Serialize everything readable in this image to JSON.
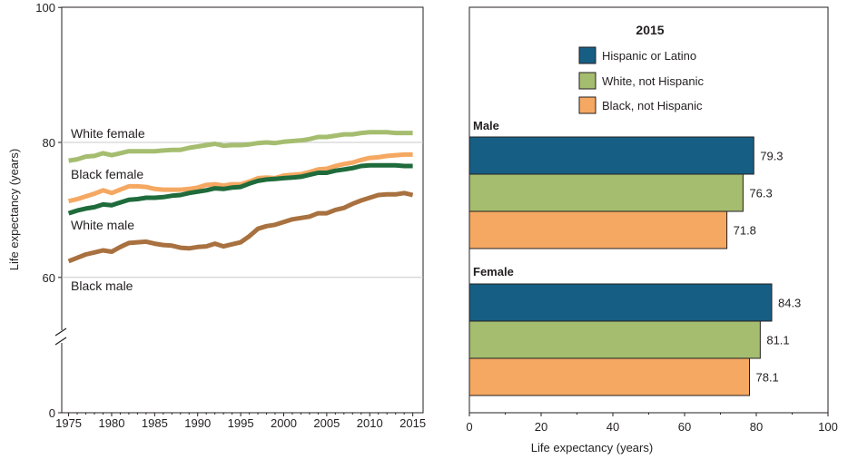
{
  "chart_data": [
    {
      "type": "line",
      "ylabel": "Life expectancy (years)",
      "ylim": [
        0,
        100
      ],
      "axis_break": true,
      "x_ticks": [
        "1975",
        "1980",
        "1985",
        "1990",
        "1995",
        "2000",
        "2005",
        "2010",
        "2015"
      ],
      "y_ticks": [
        "0",
        "60",
        "80",
        "100"
      ],
      "grid": "horizontal at 60 and 80",
      "x": [
        1975,
        1976,
        1977,
        1978,
        1979,
        1980,
        1981,
        1982,
        1983,
        1984,
        1985,
        1986,
        1987,
        1988,
        1989,
        1990,
        1991,
        1992,
        1993,
        1994,
        1995,
        1996,
        1997,
        1998,
        1999,
        2000,
        2001,
        2002,
        2003,
        2004,
        2005,
        2006,
        2007,
        2008,
        2009,
        2010,
        2011,
        2012,
        2013,
        2014,
        2015
      ],
      "series": [
        {
          "name": "White female",
          "color": "#a5bd6f",
          "values": [
            77.3,
            77.5,
            77.9,
            78.0,
            78.4,
            78.1,
            78.4,
            78.7,
            78.7,
            78.7,
            78.7,
            78.8,
            78.9,
            78.9,
            79.2,
            79.4,
            79.6,
            79.8,
            79.5,
            79.6,
            79.6,
            79.7,
            79.9,
            80.0,
            79.9,
            80.1,
            80.2,
            80.3,
            80.5,
            80.8,
            80.8,
            81.0,
            81.2,
            81.2,
            81.4,
            81.5,
            81.5,
            81.5,
            81.4,
            81.4,
            81.4
          ]
        },
        {
          "name": "Black female",
          "color": "#f5a862",
          "values": [
            71.3,
            71.6,
            72.0,
            72.4,
            72.9,
            72.5,
            73.0,
            73.5,
            73.5,
            73.4,
            73.1,
            73.0,
            73.0,
            73.0,
            73.1,
            73.3,
            73.7,
            73.8,
            73.6,
            73.8,
            73.8,
            74.2,
            74.7,
            74.8,
            74.7,
            75.1,
            75.2,
            75.3,
            75.6,
            76.0,
            76.1,
            76.5,
            76.8,
            77.0,
            77.4,
            77.7,
            77.8,
            78.0,
            78.1,
            78.2,
            78.2
          ]
        },
        {
          "name": "White male",
          "color": "#1f6b3b",
          "values": [
            69.5,
            69.9,
            70.2,
            70.4,
            70.8,
            70.7,
            71.1,
            71.5,
            71.6,
            71.8,
            71.8,
            71.9,
            72.1,
            72.2,
            72.5,
            72.7,
            72.9,
            73.2,
            73.1,
            73.3,
            73.4,
            73.9,
            74.3,
            74.5,
            74.6,
            74.7,
            74.8,
            74.9,
            75.2,
            75.5,
            75.5,
            75.8,
            76.0,
            76.2,
            76.5,
            76.6,
            76.6,
            76.6,
            76.6,
            76.5,
            76.5
          ]
        },
        {
          "name": "Black male",
          "color": "#a8713f",
          "values": [
            62.4,
            62.9,
            63.4,
            63.7,
            64.0,
            63.8,
            64.5,
            65.1,
            65.2,
            65.3,
            65.0,
            64.8,
            64.7,
            64.4,
            64.3,
            64.5,
            64.6,
            65.0,
            64.6,
            64.9,
            65.2,
            66.1,
            67.2,
            67.6,
            67.8,
            68.2,
            68.6,
            68.8,
            69.0,
            69.5,
            69.5,
            70.0,
            70.3,
            70.9,
            71.4,
            71.8,
            72.2,
            72.3,
            72.3,
            72.5,
            72.2
          ]
        }
      ]
    },
    {
      "type": "bar",
      "orientation": "horizontal",
      "title": "2015",
      "xlabel": "Life expectancy (years)",
      "xlim": [
        0,
        100
      ],
      "x_ticks": [
        "0",
        "20",
        "40",
        "60",
        "80",
        "100"
      ],
      "legend": [
        {
          "label": "Hispanic or Latino",
          "color": "#175e84"
        },
        {
          "label": "White, not Hispanic",
          "color": "#a5bd6f"
        },
        {
          "label": "Black, not Hispanic",
          "color": "#f5a862"
        }
      ],
      "groups": [
        {
          "label": "Male",
          "values": [
            79.3,
            76.3,
            71.8
          ],
          "labels": [
            "79.3",
            "76.3",
            "71.8"
          ]
        },
        {
          "label": "Female",
          "values": [
            84.3,
            81.1,
            78.1
          ],
          "labels": [
            "84.3",
            "81.1",
            "78.1"
          ]
        }
      ]
    }
  ]
}
